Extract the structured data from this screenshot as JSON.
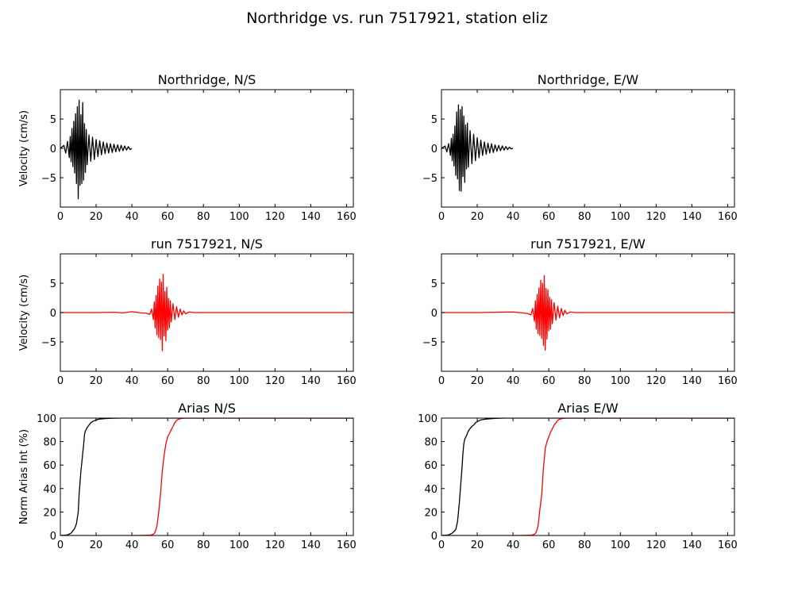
{
  "figure": {
    "title": "Northridge vs. run 7517921, station eliz"
  },
  "colors": {
    "recorded": "#000000",
    "simulated": "#ff0000"
  },
  "chart_data": [
    {
      "type": "line",
      "title": "Northridge, N/S",
      "ylabel": "Velocity (cm/s)",
      "xlim": [
        0,
        163.8
      ],
      "ylim": [
        -10,
        10
      ],
      "xticks": [
        0,
        20,
        40,
        60,
        80,
        100,
        120,
        140,
        160
      ],
      "yticks": [
        -5,
        0,
        5
      ],
      "ytick_labels": [
        "−5",
        "0",
        "5"
      ],
      "series": [
        {
          "color": "#000000",
          "x": [
            0,
            2,
            3,
            4,
            5,
            5.5,
            6,
            6.5,
            7,
            7.5,
            8,
            8.5,
            9,
            9.5,
            10,
            10.5,
            11,
            11.5,
            12,
            12.5,
            13,
            13.5,
            14,
            14.5,
            15,
            16,
            17,
            18,
            19,
            20,
            21,
            22,
            23,
            24,
            25,
            26,
            27,
            28,
            29,
            30,
            31,
            32,
            33,
            34,
            35,
            36,
            37,
            38,
            39,
            40
          ],
          "y": [
            0,
            0.5,
            -0.8,
            1.2,
            -1.6,
            2.0,
            -2.3,
            3.4,
            -3.1,
            4.6,
            -4.2,
            5.9,
            -6.0,
            7.1,
            -8.6,
            8.2,
            -6.3,
            5.7,
            -6.0,
            7.8,
            -5.4,
            4.2,
            -4.1,
            3.2,
            -2.8,
            2.3,
            -2.2,
            1.9,
            -1.9,
            1.5,
            -1.4,
            1.3,
            -1.1,
            1.1,
            -0.9,
            0.9,
            -0.8,
            0.8,
            -0.7,
            0.7,
            -0.6,
            0.6,
            -0.5,
            0.5,
            -0.4,
            0.4,
            -0.3,
            0.3,
            -0.2,
            0
          ]
        }
      ]
    },
    {
      "type": "line",
      "title": "Northridge, E/W",
      "ylabel": "",
      "xlim": [
        0,
        163.8
      ],
      "ylim": [
        -10,
        10
      ],
      "xticks": [
        0,
        20,
        40,
        60,
        80,
        100,
        120,
        140,
        160
      ],
      "yticks": [
        -5,
        0,
        5
      ],
      "ytick_labels": [
        "−5",
        "0",
        "5"
      ],
      "series": [
        {
          "color": "#000000",
          "x": [
            0,
            2,
            3,
            4,
            5,
            5.5,
            6,
            6.5,
            7,
            7.5,
            8,
            8.5,
            9,
            9.5,
            10,
            10.5,
            11,
            11.5,
            12,
            12.5,
            13,
            13.5,
            14,
            14.5,
            15,
            16,
            17,
            18,
            19,
            20,
            21,
            22,
            23,
            24,
            25,
            26,
            27,
            28,
            29,
            30,
            31,
            32,
            33,
            34,
            35,
            36,
            37,
            38,
            39,
            40
          ],
          "y": [
            0,
            0.4,
            -0.6,
            0.8,
            -1.2,
            1.7,
            -2.1,
            2.4,
            -3.0,
            3.8,
            -4.6,
            6.2,
            -5.2,
            7.4,
            -7.2,
            6.6,
            -7.3,
            7.1,
            -4.8,
            5.5,
            -5.8,
            4.0,
            -3.5,
            4.3,
            -3.2,
            3.0,
            -2.6,
            2.4,
            -2.1,
            1.8,
            -1.6,
            1.4,
            -1.2,
            1.1,
            -1.0,
            0.9,
            -0.8,
            0.8,
            -0.7,
            0.6,
            -0.5,
            0.5,
            -0.4,
            0.4,
            -0.3,
            0.3,
            -0.2,
            0.2,
            -0.1,
            0
          ]
        }
      ]
    },
    {
      "type": "line",
      "title": "run 7517921, N/S",
      "ylabel": "Velocity (cm/s)",
      "xlim": [
        0,
        163.8
      ],
      "ylim": [
        -10,
        10
      ],
      "xticks": [
        0,
        20,
        40,
        60,
        80,
        100,
        120,
        140,
        160
      ],
      "yticks": [
        -5,
        0,
        5
      ],
      "ytick_labels": [
        "−5",
        "0",
        "5"
      ],
      "series": [
        {
          "color": "#ff0000",
          "x": [
            0,
            20,
            30,
            35,
            40,
            45,
            48,
            50,
            51,
            52,
            52.5,
            53,
            53.5,
            54,
            54.5,
            55,
            55.5,
            56,
            56.5,
            57,
            57.5,
            58,
            58.5,
            59,
            59.5,
            60,
            60.5,
            61,
            61.5,
            62,
            63,
            64,
            65,
            66,
            67,
            68,
            69,
            70,
            72,
            75,
            80,
            100,
            120,
            140,
            163.8
          ],
          "y": [
            0,
            0,
            0.05,
            -0.05,
            0.15,
            -0.05,
            -0.1,
            -0.3,
            0.6,
            -1.2,
            1.8,
            -2.6,
            2.9,
            -3.8,
            4.5,
            -4.3,
            5.7,
            -4.6,
            5.2,
            -6.5,
            6.5,
            -4.0,
            3.6,
            -4.8,
            4.3,
            -3.0,
            2.4,
            -2.6,
            2.0,
            -1.6,
            1.5,
            -1.2,
            1.0,
            -0.8,
            0.6,
            -0.4,
            0.3,
            -0.2,
            0.1,
            0,
            0,
            0,
            0,
            0,
            0
          ]
        }
      ]
    },
    {
      "type": "line",
      "title": "run 7517921, E/W",
      "ylabel": "",
      "xlim": [
        0,
        163.8
      ],
      "ylim": [
        -10,
        10
      ],
      "xticks": [
        0,
        20,
        40,
        60,
        80,
        100,
        120,
        140,
        160
      ],
      "yticks": [
        -5,
        0,
        5
      ],
      "ytick_labels": [
        "−5",
        "0",
        "5"
      ],
      "series": [
        {
          "color": "#ff0000",
          "x": [
            0,
            20,
            30,
            40,
            45,
            48,
            50,
            51,
            52,
            52.5,
            53,
            53.5,
            54,
            54.5,
            55,
            55.5,
            56,
            56.5,
            57,
            57.5,
            58,
            58.5,
            59,
            59.5,
            60,
            60.5,
            61,
            61.5,
            62,
            63,
            64,
            65,
            66,
            67,
            68,
            69,
            70,
            72,
            75,
            80,
            100,
            120,
            140,
            163.8
          ],
          "y": [
            0,
            0,
            0.05,
            0.1,
            -0.05,
            -0.15,
            -0.4,
            0.7,
            -1.5,
            2.0,
            -2.8,
            3.1,
            -3.6,
            4.2,
            -3.9,
            5.5,
            -4.4,
            5.0,
            -5.6,
            6.3,
            -6.4,
            4.1,
            -4.5,
            3.9,
            -3.1,
            2.6,
            -2.8,
            2.2,
            -1.9,
            1.7,
            -1.3,
            1.1,
            -0.9,
            0.7,
            -0.5,
            0.4,
            -0.2,
            0.1,
            0,
            0,
            0,
            0,
            0,
            0
          ]
        }
      ]
    },
    {
      "type": "line",
      "title": "Arias N/S",
      "ylabel": "Norm Arias Int (%)",
      "xlim": [
        0,
        163.8
      ],
      "ylim": [
        0,
        100
      ],
      "xticks": [
        0,
        20,
        40,
        60,
        80,
        100,
        120,
        140,
        160
      ],
      "yticks": [
        0,
        20,
        40,
        60,
        80,
        100
      ],
      "ytick_labels": [
        "0",
        "20",
        "40",
        "60",
        "80",
        "100"
      ],
      "series": [
        {
          "color": "#000000",
          "x": [
            0,
            4,
            6,
            7,
            8,
            9,
            10,
            10.5,
            11,
            11.5,
            12,
            12.5,
            13,
            13.5,
            14,
            15,
            16,
            17,
            18,
            20,
            22,
            25,
            30,
            35,
            40,
            163.8
          ],
          "y": [
            0,
            0.5,
            2,
            4,
            6,
            10,
            20,
            35,
            45,
            55,
            62,
            70,
            77,
            86,
            89,
            92,
            94,
            96,
            97,
            98.5,
            99.2,
            99.6,
            99.9,
            100,
            100,
            100
          ]
        },
        {
          "color": "#ff0000",
          "x": [
            0,
            40,
            50,
            52,
            53,
            54,
            55,
            55.5,
            56,
            56.5,
            57,
            58,
            59,
            60,
            61,
            62,
            63,
            64,
            65,
            66,
            68,
            70,
            163.8
          ],
          "y": [
            0,
            0,
            0.2,
            1,
            3,
            8,
            20,
            28,
            35,
            45,
            55,
            68,
            78,
            84,
            87,
            90,
            93,
            96,
            98,
            99,
            99.8,
            100,
            100
          ]
        }
      ]
    },
    {
      "type": "line",
      "title": "Arias E/W",
      "ylabel": "",
      "xlim": [
        0,
        163.8
      ],
      "ylim": [
        0,
        100
      ],
      "xticks": [
        0,
        20,
        40,
        60,
        80,
        100,
        120,
        140,
        160
      ],
      "yticks": [
        0,
        20,
        40,
        60,
        80,
        100
      ],
      "ytick_labels": [
        "0",
        "20",
        "40",
        "60",
        "80",
        "100"
      ],
      "series": [
        {
          "color": "#000000",
          "x": [
            0,
            4,
            6,
            8,
            9,
            10,
            10.5,
            11,
            11.5,
            12,
            12.5,
            13,
            14,
            15,
            16,
            17,
            18,
            19,
            20,
            22,
            25,
            30,
            35,
            40,
            163.8
          ],
          "y": [
            0,
            0.5,
            2,
            5,
            12,
            28,
            38,
            48,
            58,
            70,
            78,
            82,
            85,
            89,
            91,
            93,
            94,
            96,
            97,
            98.5,
            99.2,
            99.8,
            100,
            100,
            100
          ]
        },
        {
          "color": "#ff0000",
          "x": [
            0,
            40,
            50,
            52,
            53,
            54,
            55,
            56,
            56.5,
            57,
            57.5,
            58,
            59,
            60,
            61,
            62,
            63,
            64,
            65,
            66,
            68,
            70,
            163.8
          ],
          "y": [
            0,
            0,
            0.2,
            1,
            3,
            8,
            22,
            34,
            45,
            58,
            65,
            74,
            80,
            84,
            88,
            91,
            94,
            96,
            98,
            99,
            99.8,
            100,
            100
          ]
        }
      ]
    }
  ]
}
